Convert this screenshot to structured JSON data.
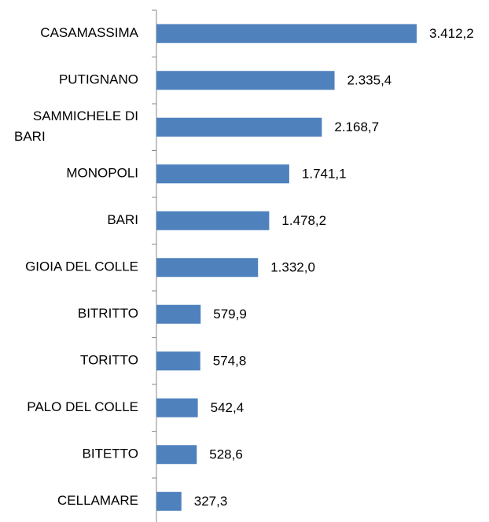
{
  "chart_data": {
    "type": "bar",
    "orientation": "horizontal",
    "color": "#4f81bd",
    "categories": [
      "CASAMASSIMA",
      "PUTIGNANO",
      "SAMMICHELE DI BARI",
      "MONOPOLI",
      "BARI",
      "GIOIA DEL COLLE",
      "BITRITTO",
      "TORITTO",
      "PALO DEL COLLE",
      "BITETTO",
      "CELLAMARE"
    ],
    "values": [
      3412.2,
      2335.4,
      2168.7,
      1741.1,
      1478.2,
      1332.0,
      579.9,
      574.8,
      542.4,
      528.6,
      327.3
    ],
    "value_labels": [
      "3.412,2",
      "2.335,4",
      "2.168,7",
      "1.741,1",
      "1.478,2",
      "1.332,0",
      "579,9",
      "574,8",
      "542,4",
      "528,6",
      "327,3"
    ]
  }
}
